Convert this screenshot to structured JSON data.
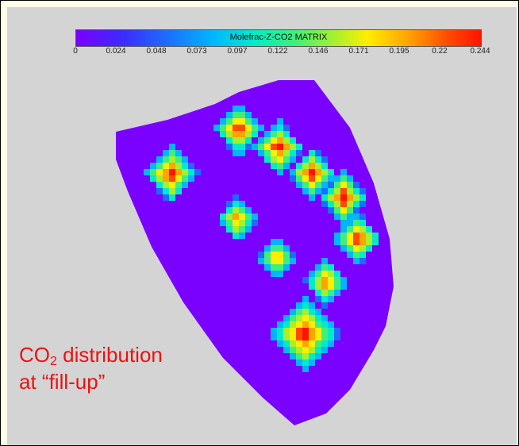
{
  "colorbar": {
    "title": "Molefrac-Z-CO2 MATRIX",
    "ticks": [
      "0",
      "0.024",
      "0.048",
      "0.073",
      "0.097",
      "0.122",
      "0.146",
      "0.171",
      "0.195",
      "0.22",
      "0.244"
    ]
  },
  "caption": {
    "line1_main": "CO",
    "line1_sub": "2",
    "line1_rest": " distribution",
    "line2": "at “fill-up”"
  },
  "colors": {
    "background": "#d4d4d4",
    "frame_border": "#000000",
    "caption": "#ee1111",
    "matrix_base": "#7a00ff"
  }
}
